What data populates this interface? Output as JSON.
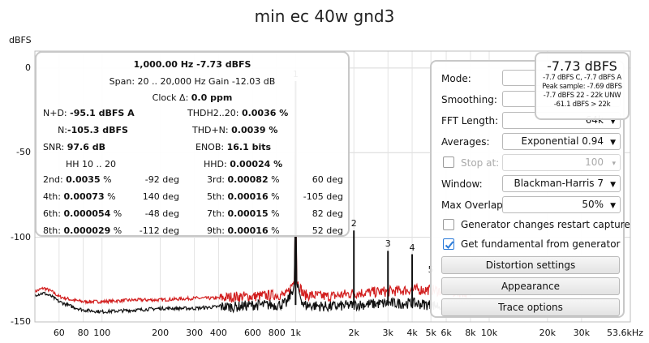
{
  "title": "min ec 40w gnd3",
  "y_axis_unit": "dBFS",
  "chart_data": {
    "type": "line",
    "xlabel": "",
    "ylabel": "dBFS",
    "x_scale": "log",
    "xlim": [
      45,
      53600
    ],
    "ylim": [
      -150,
      10
    ],
    "y_ticks": [
      0,
      -50,
      -100,
      -150
    ],
    "x_ticks": [
      "60",
      "80",
      "100",
      "200",
      "300",
      "400",
      "600",
      "800",
      "1k",
      "2k",
      "3k",
      "4k",
      "5k",
      "6k",
      "8k",
      "10k",
      "20k",
      "30k",
      "53.6kHz"
    ],
    "grid": true,
    "series": [
      {
        "color": "#d21e1e",
        "x": [
          45,
          50,
          55,
          60,
          70,
          80,
          100,
          150,
          200,
          300,
          400,
          500,
          600,
          800,
          900,
          990,
          1000,
          1010,
          1100,
          1500,
          2000,
          3000,
          4000,
          5000,
          6000,
          8000
        ],
        "y": [
          -132,
          -130,
          -132,
          -135,
          -137,
          -138,
          -138,
          -137,
          -137,
          -136,
          -136,
          -135,
          -135,
          -134,
          -134,
          -125,
          -7.7,
          -125,
          -134,
          -135,
          -133,
          -132,
          -131,
          -131,
          -132,
          -133
        ]
      },
      {
        "color": "#111111",
        "x": [
          45,
          50,
          55,
          60,
          70,
          80,
          100,
          150,
          200,
          300,
          400,
          500,
          600,
          800,
          900,
          990,
          1000,
          1010,
          1100,
          1500,
          2000,
          3000,
          4000,
          5000,
          6000,
          8000
        ],
        "y": [
          -134,
          -133,
          -135,
          -138,
          -141,
          -143,
          -144,
          -143,
          -142,
          -142,
          -141,
          -141,
          -140,
          -140,
          -139,
          -128,
          -7.7,
          -128,
          -140,
          -141,
          -140,
          -139,
          -139,
          -140,
          -141,
          -142
        ]
      }
    ],
    "peaks": [
      {
        "label": "1",
        "x": 1000,
        "y": -7.7
      },
      {
        "label": "2",
        "x": 2000,
        "y": -96
      },
      {
        "label": "3",
        "x": 3000,
        "y": -108
      },
      {
        "label": "4",
        "x": 4000,
        "y": -110
      },
      {
        "label": "5",
        "x": 5000,
        "y": -123
      }
    ]
  },
  "measurements": {
    "freq_line": "1,000.00 Hz  -7.73 dBFS",
    "span_line": "Span: 20 .. 20,000 Hz   Gain -12.03 dB",
    "clock_label": "Clock Δ: ",
    "clock_value": "0.0 ppm",
    "npd_label": "N+D: ",
    "npd_value": "-95.1 dBFS A",
    "thd_label": "THDH2..20: ",
    "thd_value": "0.0036 %",
    "n_label": "N: ",
    "n_value": "-105.3 dBFS",
    "thdn_label": "THD+N: ",
    "thdn_value": "0.0039 %",
    "snr_label": "SNR: ",
    "snr_value": "97.6 dB",
    "enob_label": "ENOB: ",
    "enob_value": "16.1 bits",
    "hh_label": "HH 10 .. 20",
    "hhd_label": "HHD: ",
    "hhd_value": "0.00024 %",
    "harmonics": [
      {
        "name": "2nd: ",
        "pct": "0.0035",
        "deg": "-92 deg"
      },
      {
        "name": "3rd: ",
        "pct": "0.00082",
        "deg": "60 deg"
      },
      {
        "name": "4th: ",
        "pct": "0.00073",
        "deg": "140 deg"
      },
      {
        "name": "5th: ",
        "pct": "0.00016",
        "deg": "-105 deg"
      },
      {
        "name": "6th: ",
        "pct": "0.000054",
        "deg": "-48 deg"
      },
      {
        "name": "7th: ",
        "pct": "0.00015",
        "deg": "82 deg"
      },
      {
        "name": "8th: ",
        "pct": "0.000029",
        "deg": "-112 deg"
      },
      {
        "name": "9th: ",
        "pct": "0.00016",
        "deg": "52 deg"
      }
    ],
    "pct_unit": " %"
  },
  "settings": {
    "mode_label": "Mode:",
    "smoothing_label": "Smoothing:",
    "fft_label": "FFT Length:",
    "fft_value": "64k",
    "averages_label": "Averages:",
    "averages_value": "Exponential 0.94",
    "stop_at_label": "Stop at:",
    "stop_at_value": "100",
    "window_label": "Window:",
    "window_value": "Blackman-Harris 7",
    "overlap_label": "Max Overlap:",
    "overlap_value": "50%",
    "gen_restart_label": "Generator changes restart capture",
    "fundamental_label": "Get fundamental from generator",
    "distortion_button": "Distortion settings",
    "appearance_button": "Appearance",
    "trace_button": "Trace options"
  },
  "level": {
    "main": "-7.73 dBFS",
    "line1": "-7.7 dBFS C, -7.7 dBFS A",
    "line2": "Peak sample: -7.69 dBFS",
    "line3": "-7.7 dBFS 22 - 22k UNW",
    "line4": "-61.1 dBFS > 22k"
  }
}
